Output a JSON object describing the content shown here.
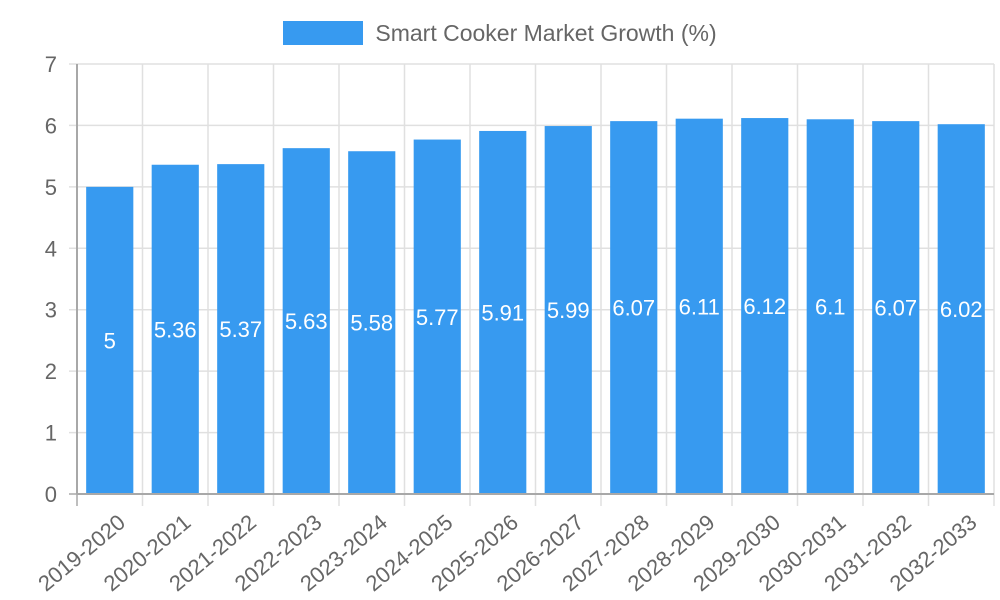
{
  "chart_data": {
    "type": "bar",
    "title": "",
    "xlabel": "",
    "ylabel": "",
    "ylim": [
      0,
      7
    ],
    "yticks": [
      0,
      1,
      2,
      3,
      4,
      5,
      6,
      7
    ],
    "grid": true,
    "legend_position": "top",
    "categories": [
      "2019-2020",
      "2020-2021",
      "2021-2022",
      "2022-2023",
      "2023-2024",
      "2024-2025",
      "2025-2026",
      "2026-2027",
      "2027-2028",
      "2028-2029",
      "2029-2030",
      "2030-2031",
      "2031-2032",
      "2032-2033"
    ],
    "series": [
      {
        "name": "Smart Cooker Market Growth (%)",
        "color": "#379af0",
        "values": [
          5,
          5.36,
          5.37,
          5.63,
          5.58,
          5.77,
          5.91,
          5.99,
          6.07,
          6.11,
          6.12,
          6.1,
          6.07,
          6.02
        ],
        "data_labels": [
          "5",
          "5.36",
          "5.37",
          "5.63",
          "5.58",
          "5.77",
          "5.91",
          "5.99",
          "6.07",
          "6.11",
          "6.12",
          "6.1",
          "6.07",
          "6.02"
        ]
      }
    ]
  },
  "legend": {
    "label": "Smart Cooker Market Growth (%)",
    "color": "#379af0"
  },
  "colors": {
    "bar": "#379af0",
    "grid": "#e0e0e0",
    "axis": "#a8a8a8",
    "tick_text": "#666666",
    "data_label": "#ffffff"
  }
}
